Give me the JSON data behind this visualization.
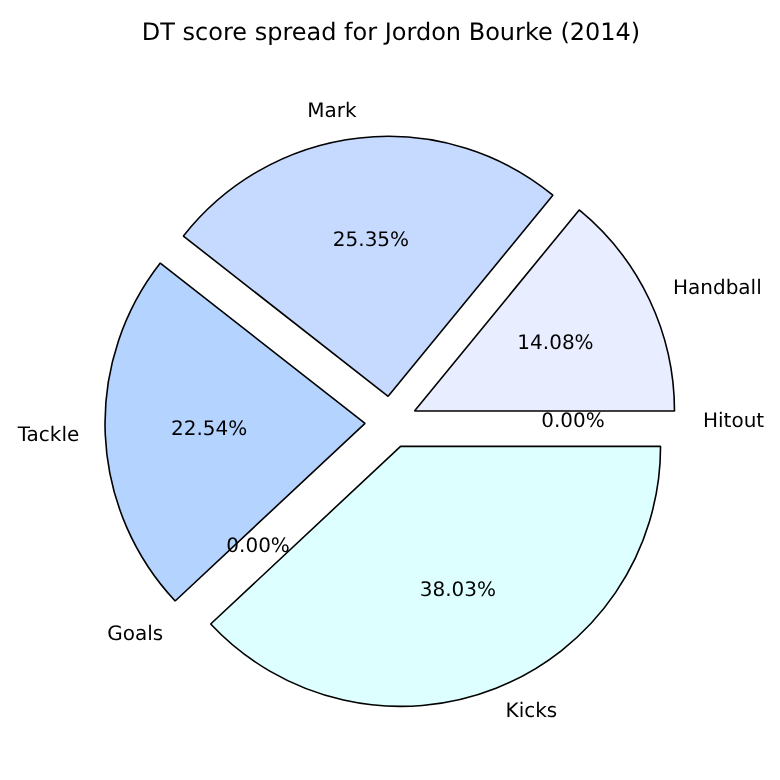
{
  "chart_data": {
    "type": "pie",
    "title": "DT score spread for Jordon Bourke (2014)",
    "categories": [
      "Hitout",
      "Handball",
      "Mark",
      "Tackle",
      "Goals",
      "Kicks"
    ],
    "values": [
      0,
      14.08,
      25.35,
      22.54,
      0,
      38.03
    ],
    "value_labels": [
      "0.00%",
      "14.08%",
      "25.35%",
      "22.54%",
      "0.00%",
      "38.03%"
    ],
    "colors": [
      "#f0f8ff",
      "#e8eeff",
      "#c6d9ff",
      "#b4d4ff",
      "#c8e8ff",
      "#ddffff"
    ]
  }
}
